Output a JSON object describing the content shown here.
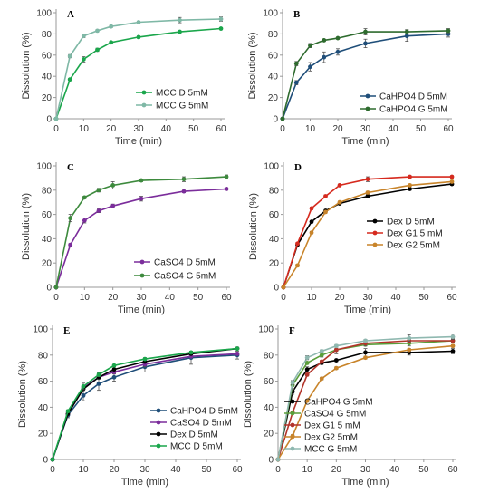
{
  "chart_data": [
    {
      "type": "line",
      "panel_label": "A",
      "xlabel": "Time (min)",
      "ylabel": "Dissolution (%)",
      "xlim": [
        0,
        60
      ],
      "ylim": [
        0,
        100
      ],
      "xticks": [
        0,
        10,
        20,
        30,
        40,
        50,
        60
      ],
      "yticks": [
        0,
        20,
        40,
        60,
        80,
        100
      ],
      "legend_position": "bottom-right",
      "series": [
        {
          "name": "MCC D 5mM",
          "color": "#1aa64b",
          "marker": "circle",
          "x": [
            0,
            5,
            10,
            15,
            20,
            30,
            45,
            60
          ],
          "y": [
            0,
            37,
            56,
            65,
            72,
            77,
            82,
            85
          ],
          "err": [
            0,
            1,
            2.5,
            1.5,
            1,
            1,
            1,
            1
          ]
        },
        {
          "name": "MCC G 5mM",
          "color": "#7fb8a6",
          "marker": "circle",
          "x": [
            0,
            5,
            10,
            15,
            20,
            30,
            45,
            60
          ],
          "y": [
            0,
            59,
            78,
            83,
            87,
            91,
            93,
            94
          ],
          "err": [
            0,
            1.5,
            1.5,
            1,
            1,
            1,
            2.5,
            2
          ]
        }
      ]
    },
    {
      "type": "line",
      "panel_label": "B",
      "xlabel": "Time (min)",
      "ylabel": "Dissolution (%)",
      "xlim": [
        0,
        60
      ],
      "ylim": [
        0,
        100
      ],
      "xticks": [
        0,
        10,
        20,
        30,
        40,
        50,
        60
      ],
      "yticks": [
        0,
        20,
        40,
        60,
        80,
        100
      ],
      "legend_position": "bottom-right",
      "series": [
        {
          "name": "CaHPO4 D 5mM",
          "color": "#1f4e79",
          "marker": "circle",
          "x": [
            0,
            5,
            10,
            15,
            20,
            30,
            45,
            60
          ],
          "y": [
            0,
            34,
            49,
            58,
            63,
            71,
            78,
            80
          ],
          "err": [
            0,
            2,
            4,
            5,
            3,
            4,
            5,
            3
          ]
        },
        {
          "name": "CaHPO4 G 5mM",
          "color": "#2e6b2e",
          "marker": "circle",
          "x": [
            0,
            5,
            10,
            15,
            20,
            30,
            45,
            60
          ],
          "y": [
            0,
            52,
            69,
            74,
            76,
            82,
            82,
            83
          ],
          "err": [
            0,
            2,
            2,
            1,
            1,
            3,
            2,
            2
          ]
        }
      ]
    },
    {
      "type": "line",
      "panel_label": "C",
      "xlabel": "Time (min)",
      "ylabel": "Dissolution (%)",
      "xlim": [
        0,
        60
      ],
      "ylim": [
        0,
        100
      ],
      "xticks": [
        0,
        10,
        20,
        30,
        40,
        50,
        60
      ],
      "yticks": [
        0,
        20,
        40,
        60,
        80,
        100
      ],
      "legend_position": "bottom-right",
      "series": [
        {
          "name": "CaSO4 D 5mM",
          "color": "#7b2d9b",
          "marker": "circle",
          "x": [
            0,
            5,
            10,
            15,
            20,
            30,
            45,
            60
          ],
          "y": [
            0,
            35,
            55,
            63,
            67,
            73,
            79,
            81
          ],
          "err": [
            0,
            1,
            2,
            1.5,
            1.5,
            2,
            1,
            1
          ]
        },
        {
          "name": "CaSO4 G 5mM",
          "color": "#3d8a3d",
          "marker": "circle",
          "x": [
            0,
            5,
            10,
            15,
            20,
            30,
            45,
            60
          ],
          "y": [
            0,
            57,
            74,
            80,
            84,
            88,
            89,
            91
          ],
          "err": [
            0,
            3,
            1,
            1.5,
            3,
            1,
            2,
            1.5
          ]
        }
      ]
    },
    {
      "type": "line",
      "panel_label": "D",
      "xlabel": "Time (min)",
      "ylabel": "Dissolution (%)",
      "xlim": [
        0,
        60
      ],
      "ylim": [
        0,
        100
      ],
      "xticks": [
        0,
        10,
        20,
        30,
        40,
        50,
        60
      ],
      "yticks": [
        0,
        20,
        40,
        60,
        80,
        100
      ],
      "legend_position": "bottom-right",
      "series": [
        {
          "name": "Dex D 5mM",
          "color": "#000000",
          "marker": "circle",
          "x": [
            0,
            5,
            10,
            15,
            20,
            30,
            45,
            60
          ],
          "y": [
            0,
            35,
            54,
            63,
            69,
            75,
            81,
            85
          ],
          "err": [
            0,
            1,
            1,
            1,
            1,
            1,
            1,
            1
          ]
        },
        {
          "name": "Dex G1 5 mM",
          "color": "#d62a1e",
          "marker": "circle",
          "x": [
            0,
            5,
            10,
            15,
            20,
            30,
            45,
            60
          ],
          "y": [
            0,
            36,
            65,
            75,
            84,
            89,
            91,
            91
          ],
          "err": [
            0,
            1,
            1,
            1,
            1,
            2,
            1,
            1
          ]
        },
        {
          "name": "Dex G2 5mM",
          "color": "#c8842a",
          "marker": "circle",
          "x": [
            0,
            5,
            10,
            15,
            20,
            30,
            45,
            60
          ],
          "y": [
            0,
            18,
            45,
            62,
            70,
            78,
            84,
            87
          ],
          "err": [
            0,
            1,
            1,
            1,
            1,
            1,
            1,
            1
          ]
        }
      ]
    },
    {
      "type": "line",
      "panel_label": "E",
      "xlabel": "Time (min)",
      "ylabel": "Dissolution (%)",
      "xlim": [
        0,
        60
      ],
      "ylim": [
        0,
        100
      ],
      "xticks": [
        0,
        10,
        20,
        30,
        40,
        50,
        60
      ],
      "yticks": [
        0,
        20,
        40,
        60,
        80,
        100
      ],
      "legend_position": "bottom-right",
      "series": [
        {
          "name": "CaHPO4 D 5mM",
          "color": "#1f4e79",
          "marker": "circle",
          "x": [
            0,
            5,
            10,
            15,
            20,
            30,
            45,
            60
          ],
          "y": [
            0,
            34,
            49,
            58,
            63,
            71,
            78,
            80
          ],
          "err": [
            0,
            2,
            4,
            5,
            3,
            4,
            5,
            3
          ]
        },
        {
          "name": "CaSO4 D 5mM",
          "color": "#7b2d9b",
          "marker": "circle",
          "x": [
            0,
            5,
            10,
            15,
            20,
            30,
            45,
            60
          ],
          "y": [
            0,
            35,
            55,
            63,
            67,
            73,
            79,
            81
          ],
          "err": [
            0,
            1,
            2,
            1.5,
            1.5,
            2,
            1,
            1
          ]
        },
        {
          "name": "Dex D 5mM",
          "color": "#000000",
          "marker": "circle",
          "x": [
            0,
            5,
            10,
            15,
            20,
            30,
            45,
            60
          ],
          "y": [
            0,
            35,
            54,
            63,
            69,
            75,
            81,
            85
          ],
          "err": [
            0,
            1,
            1,
            1,
            1,
            1,
            1,
            1
          ]
        },
        {
          "name": "MCC D 5mM",
          "color": "#1aa64b",
          "marker": "circle",
          "x": [
            0,
            5,
            10,
            15,
            20,
            30,
            45,
            60
          ],
          "y": [
            0,
            37,
            56,
            65,
            72,
            77,
            82,
            85
          ],
          "err": [
            0,
            1,
            2.5,
            1.5,
            1,
            1,
            1,
            1
          ]
        }
      ]
    },
    {
      "type": "line",
      "panel_label": "F",
      "xlabel": "Time (min)",
      "ylabel": "Dissolution (%)",
      "xlim": [
        0,
        60
      ],
      "ylim": [
        0,
        100
      ],
      "xticks": [
        0,
        10,
        20,
        30,
        40,
        50,
        60
      ],
      "yticks": [
        0,
        20,
        40,
        60,
        80,
        100
      ],
      "legend_position": "bottom-right",
      "series": [
        {
          "name": "CaHPO4 G 5mM",
          "color": "#000000",
          "marker": "circle",
          "x": [
            0,
            5,
            10,
            15,
            20,
            30,
            45,
            60
          ],
          "y": [
            0,
            52,
            69,
            74,
            76,
            82,
            82,
            83
          ],
          "err": [
            0,
            2,
            2,
            1,
            1,
            3,
            2,
            2
          ]
        },
        {
          "name": "CaSO4 G 5mM",
          "color": "#5a9e3a",
          "marker": "circle",
          "x": [
            0,
            5,
            10,
            15,
            20,
            30,
            45,
            60
          ],
          "y": [
            0,
            57,
            74,
            80,
            84,
            88,
            89,
            91
          ],
          "err": [
            0,
            3,
            1,
            1.5,
            3,
            1,
            2,
            1.5
          ]
        },
        {
          "name": "Dex G1 5 mM",
          "color": "#b2342a",
          "marker": "circle",
          "x": [
            0,
            5,
            10,
            15,
            20,
            30,
            45,
            60
          ],
          "y": [
            0,
            36,
            65,
            75,
            84,
            89,
            91,
            91
          ],
          "err": [
            0,
            1,
            1,
            1,
            1,
            2,
            1,
            1
          ]
        },
        {
          "name": "Dex G2 5mM",
          "color": "#c8842a",
          "marker": "circle",
          "x": [
            0,
            5,
            10,
            15,
            20,
            30,
            45,
            60
          ],
          "y": [
            0,
            18,
            45,
            62,
            70,
            78,
            84,
            87
          ],
          "err": [
            0,
            1,
            1,
            1,
            1,
            1,
            1,
            1
          ]
        },
        {
          "name": "MCC G 5mM",
          "color": "#8fb8b0",
          "marker": "circle",
          "x": [
            0,
            5,
            10,
            15,
            20,
            30,
            45,
            60
          ],
          "y": [
            0,
            59,
            78,
            83,
            87,
            91,
            93,
            94
          ],
          "err": [
            0,
            1.5,
            1.5,
            1,
            1,
            1,
            2.5,
            2
          ]
        }
      ]
    }
  ]
}
